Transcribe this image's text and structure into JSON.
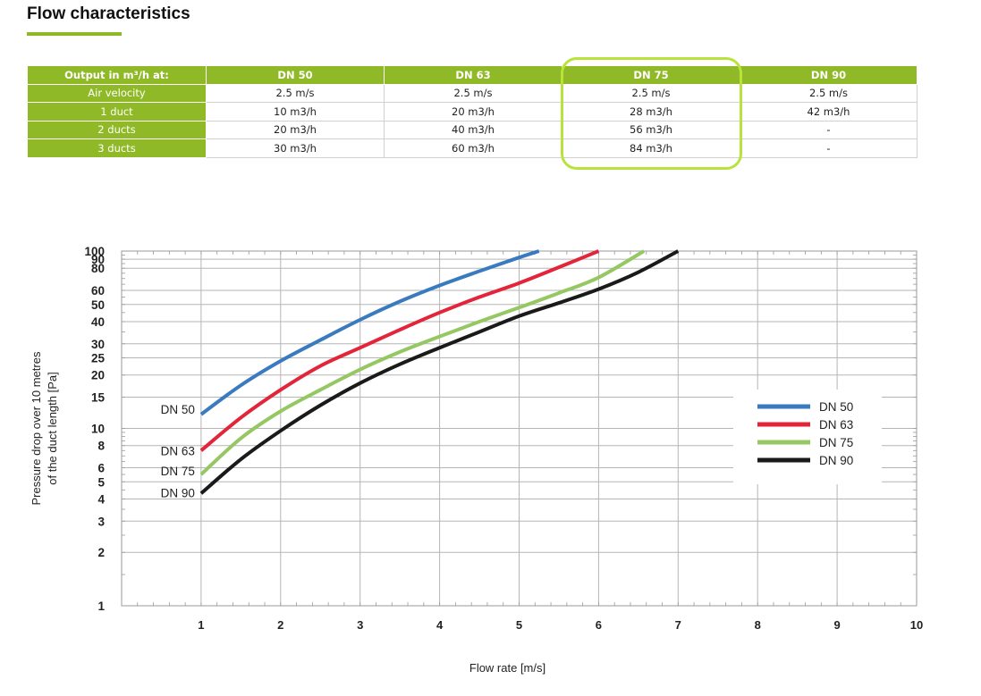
{
  "page": {
    "title": "Flow characteristics",
    "accent_color": "#8fb927",
    "highlight_color": "#b9e33a"
  },
  "table": {
    "headers": [
      "Output in m³/h at:",
      "DN 50",
      "DN 63",
      "DN 75",
      "DN 90"
    ],
    "rows": [
      [
        "Air velocity",
        "2.5 m/s",
        "2.5 m/s",
        "2.5 m/s",
        "2.5 m/s"
      ],
      [
        "1 duct",
        "10 m3/h",
        "20 m3/h",
        "28 m3/h",
        "42 m3/h"
      ],
      [
        "2 ducts",
        "20 m3/h",
        "40 m3/h",
        "56 m3/h",
        "-"
      ],
      [
        "3 ducts",
        "30 m3/h",
        "60 m3/h",
        "84 m3/h",
        "-"
      ]
    ],
    "highlighted_column": "DN 75"
  },
  "chart_data": {
    "type": "line",
    "title": "",
    "xlabel": "Flow rate [m/s]",
    "ylabel_line1": "Pressure drop over 10 metres",
    "ylabel_line2": "of the duct length [Pa]",
    "xscale": "linear",
    "yscale": "log",
    "xlim": [
      0,
      10
    ],
    "ylim": [
      1,
      100
    ],
    "x_ticks": [
      "1",
      "2",
      "3",
      "4",
      "5",
      "6",
      "7",
      "8",
      "9",
      "10"
    ],
    "y_ticks": [
      "1",
      "2",
      "3",
      "4",
      "5",
      "6",
      "8",
      "10",
      "15",
      "20",
      "25",
      "30",
      "40",
      "50",
      "60",
      "80",
      "90",
      "100"
    ],
    "grid": true,
    "legend_position": "right",
    "series": [
      {
        "name": "DN 50",
        "color": "#3a7bc0",
        "label": "DN 50",
        "x": [
          1,
          1.5,
          2,
          2.5,
          3,
          3.5,
          4,
          4.5,
          5,
          5.25
        ],
        "y": [
          12,
          17.5,
          24,
          31.5,
          41,
          52,
          64,
          77,
          92,
          100
        ]
      },
      {
        "name": "DN 63",
        "color": "#e2253a",
        "label": "DN 63",
        "x": [
          1,
          1.5,
          2,
          2.5,
          3,
          3.5,
          4,
          4.5,
          5,
          5.5,
          6
        ],
        "y": [
          7.5,
          11.5,
          16.5,
          22.5,
          28.5,
          36,
          45,
          55,
          66,
          81,
          100
        ]
      },
      {
        "name": "DN 75",
        "color": "#95c763",
        "label": "DN 75",
        "x": [
          1,
          1.5,
          2,
          2.5,
          3,
          3.5,
          4,
          4.5,
          5,
          5.5,
          6,
          6.57
        ],
        "y": [
          5.5,
          8.8,
          12.5,
          16.5,
          21.5,
          27,
          33,
          40,
          48,
          58,
          71,
          100
        ]
      },
      {
        "name": "DN 90",
        "color": "#1a1a1a",
        "label": "DN 90",
        "x": [
          1,
          1.5,
          2,
          2.5,
          3,
          3.5,
          4,
          4.5,
          5,
          5.5,
          6,
          6.5,
          7
        ],
        "y": [
          4.3,
          6.7,
          9.7,
          13.5,
          18,
          23,
          28.5,
          35,
          43,
          51,
          61,
          76,
          100
        ]
      }
    ]
  }
}
